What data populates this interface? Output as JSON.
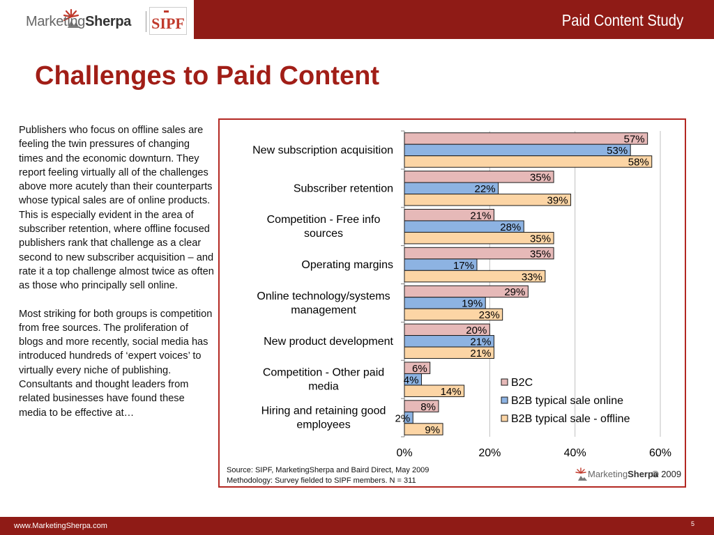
{
  "header": {
    "brand_name_part1": "Marketing",
    "brand_name_part2": "Sherpa",
    "partner_logo_text": "SIPF",
    "study_title": "Paid Content Study"
  },
  "page": {
    "title": "Challenges to Paid Content",
    "paragraphs": [
      "Publishers who focus on offline sales are feeling the twin pressures of changing times and the economic downturn. They report feeling virtually all of the challenges above more acutely than their counterparts whose typical sales are of online products. This is especially evident in the area of subscriber retention, where offline focused publishers rank that challenge as a clear second to new subscriber acquisition – and rate it a top challenge almost twice as often as those who principally sell online.",
      "Most striking for both groups is competition from free sources.  The proliferation of blogs and more recently, social media has introduced hundreds of ‘expert voices’ to virtually every niche of publishing. Consultants and thought leaders from related businesses have found these media to be effective at…"
    ]
  },
  "chart_data": {
    "type": "bar",
    "orientation": "horizontal",
    "categories": [
      "New subscription acquisition",
      "Subscriber retention",
      "Competition - Free info sources",
      "Operating margins",
      "Online technology/systems management",
      "New product development",
      "Competition - Other paid media",
      "Hiring and retaining good employees"
    ],
    "series": [
      {
        "name": "B2C",
        "color": "#e6b9b8",
        "values": [
          57,
          35,
          21,
          35,
          29,
          20,
          6,
          8
        ]
      },
      {
        "name": "B2B typical sale online",
        "color": "#8db3e2",
        "values": [
          53,
          22,
          28,
          17,
          19,
          21,
          4,
          2
        ]
      },
      {
        "name": "B2B typical sale - offline",
        "color": "#fcd5a5",
        "values": [
          58,
          39,
          35,
          33,
          23,
          21,
          14,
          9
        ]
      }
    ],
    "value_suffix": "%",
    "xlim": [
      0,
      60
    ],
    "xticks": [
      0,
      20,
      40,
      60
    ],
    "xtick_labels": [
      "0%",
      "20%",
      "40%",
      "60%"
    ],
    "grid": true,
    "legend_position": "bottom-right"
  },
  "chart_notes": {
    "source": "Source: SIPF, MarketingSherpa and Baird Direct, May 2009",
    "methodology": "Methodology: Survey fielded to SIPF members. N = 311"
  },
  "footer": {
    "logo_part1": "Marketing",
    "logo_part2": "Sherpa",
    "copyright": "© 2009",
    "url": "www.MarketingSherpa.com",
    "page_number": "5"
  }
}
